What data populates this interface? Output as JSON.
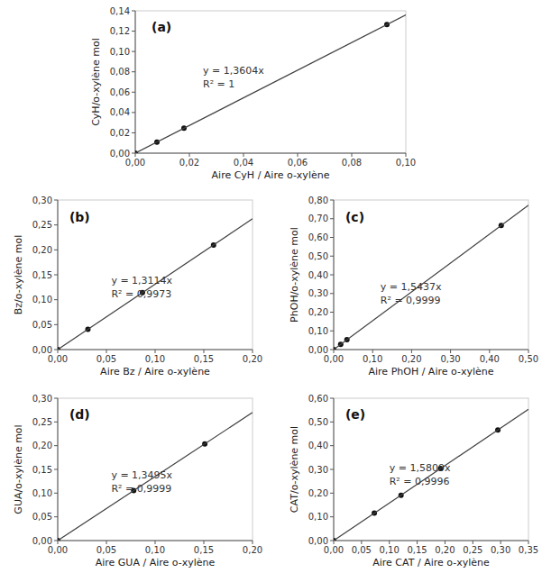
{
  "chart_data": [
    {
      "type": "scatter",
      "title": "(a)",
      "x_label": "Aire CyH / Aire o-xylène",
      "y_label": "CyH/o-xylène mol",
      "grid": false,
      "series": [
        {
          "type": "scatter",
          "color": "#111111",
          "x": [
            0.0,
            0.008,
            0.018,
            0.093
          ],
          "values": [
            0.0,
            0.0108832,
            0.0244872,
            0.1265172
          ]
        },
        {
          "type": "line",
          "color": "#404040",
          "x": [
            0.0,
            0.1
          ],
          "values": [
            0.0,
            0.13604
          ]
        }
      ],
      "annotations": [
        {
          "text": "y = 1,3604x\nR² = 1",
          "x": 0.025,
          "y": 0.075
        }
      ],
      "xlim": [
        0.0,
        0.1
      ],
      "ylim": [
        0.0,
        0.14
      ],
      "xticks": [
        {
          "value": 0.0,
          "label": "0,00"
        },
        {
          "value": 0.02,
          "label": "0,02"
        },
        {
          "value": 0.04,
          "label": "0,04"
        },
        {
          "value": 0.06,
          "label": "0,06"
        },
        {
          "value": 0.08,
          "label": "0,08"
        },
        {
          "value": 0.1,
          "label": "0,10"
        }
      ],
      "yticks": [
        {
          "value": 0.0,
          "label": "0,00"
        },
        {
          "value": 0.02,
          "label": "0,02"
        },
        {
          "value": 0.04,
          "label": "0,04"
        },
        {
          "value": 0.06,
          "label": "0,06"
        },
        {
          "value": 0.08,
          "label": "0,08"
        },
        {
          "value": 0.1,
          "label": "0,10"
        },
        {
          "value": 0.12,
          "label": "0,12"
        },
        {
          "value": 0.14,
          "label": "0,14"
        }
      ]
    },
    {
      "type": "scatter",
      "title": "(b)",
      "x_label": "Aire Bz / Aire o-xylène",
      "y_label": "Bz/o-xylène mol",
      "grid": false,
      "series": [
        {
          "type": "scatter",
          "color": "#111111",
          "x": [
            0.0,
            0.031,
            0.087,
            0.16
          ],
          "values": [
            0.0,
            0.0406534,
            0.1140918,
            0.209824
          ]
        },
        {
          "type": "line",
          "color": "#404040",
          "x": [
            0.0,
            0.2
          ],
          "values": [
            0.0,
            0.26228
          ]
        }
      ],
      "annotations": [
        {
          "text": "y = 1,3114x\nR² = 0,9973",
          "x": 0.055,
          "y": 0.125
        }
      ],
      "xlim": [
        0.0,
        0.2
      ],
      "ylim": [
        0.0,
        0.3
      ],
      "xticks": [
        {
          "value": 0.0,
          "label": "0,00"
        },
        {
          "value": 0.05,
          "label": "0,05"
        },
        {
          "value": 0.1,
          "label": "0,10"
        },
        {
          "value": 0.15,
          "label": "0,15"
        },
        {
          "value": 0.2,
          "label": "0,20"
        }
      ],
      "yticks": [
        {
          "value": 0.0,
          "label": "0,00"
        },
        {
          "value": 0.05,
          "label": "0,05"
        },
        {
          "value": 0.1,
          "label": "0,10"
        },
        {
          "value": 0.15,
          "label": "0,15"
        },
        {
          "value": 0.2,
          "label": "0,20"
        },
        {
          "value": 0.25,
          "label": "0,25"
        },
        {
          "value": 0.3,
          "label": "0,30"
        }
      ]
    },
    {
      "type": "scatter",
      "title": "(c)",
      "x_label": "Aire PhOH / Aire o-xylène",
      "y_label": "PhOH/o-xylène mol",
      "grid": false,
      "series": [
        {
          "type": "scatter",
          "color": "#111111",
          "x": [
            0.0,
            0.018,
            0.034,
            0.43
          ],
          "values": [
            0.0,
            0.0277866,
            0.0524858,
            0.663791
          ]
        },
        {
          "type": "line",
          "color": "#404040",
          "x": [
            0.0,
            0.5
          ],
          "values": [
            0.0,
            0.77185
          ]
        }
      ],
      "annotations": [
        {
          "text": "y = 1,5437x\nR² = 0,9999",
          "x": 0.12,
          "y": 0.3
        }
      ],
      "xlim": [
        0.0,
        0.5
      ],
      "ylim": [
        0.0,
        0.8
      ],
      "xticks": [
        {
          "value": 0.0,
          "label": "0,00"
        },
        {
          "value": 0.1,
          "label": "0,10"
        },
        {
          "value": 0.2,
          "label": "0,20"
        },
        {
          "value": 0.3,
          "label": "0,30"
        },
        {
          "value": 0.4,
          "label": "0,40"
        },
        {
          "value": 0.5,
          "label": "0,50"
        }
      ],
      "yticks": [
        {
          "value": 0.0,
          "label": "0,00"
        },
        {
          "value": 0.1,
          "label": "0,10"
        },
        {
          "value": 0.2,
          "label": "0,20"
        },
        {
          "value": 0.3,
          "label": "0,30"
        },
        {
          "value": 0.4,
          "label": "0,40"
        },
        {
          "value": 0.5,
          "label": "0,50"
        },
        {
          "value": 0.6,
          "label": "0,60"
        },
        {
          "value": 0.7,
          "label": "0,70"
        },
        {
          "value": 0.8,
          "label": "0,80"
        }
      ]
    },
    {
      "type": "scatter",
      "title": "(d)",
      "x_label": "Aire GUA / Aire o-xylène",
      "y_label": "GUA/o-xylène mol",
      "grid": false,
      "series": [
        {
          "type": "scatter",
          "color": "#111111",
          "x": [
            0.0,
            0.078,
            0.151
          ],
          "values": [
            0.0,
            0.105261,
            0.2037745
          ]
        },
        {
          "type": "line",
          "color": "#404040",
          "x": [
            0.0,
            0.2
          ],
          "values": [
            0.0,
            0.2699
          ]
        }
      ],
      "annotations": [
        {
          "text": "y = 1,3495x\nR² = 0,9999",
          "x": 0.055,
          "y": 0.125
        }
      ],
      "xlim": [
        0.0,
        0.2
      ],
      "ylim": [
        0.0,
        0.3
      ],
      "xticks": [
        {
          "value": 0.0,
          "label": "0,00"
        },
        {
          "value": 0.05,
          "label": "0,05"
        },
        {
          "value": 0.1,
          "label": "0,10"
        },
        {
          "value": 0.15,
          "label": "0,15"
        },
        {
          "value": 0.2,
          "label": "0,20"
        }
      ],
      "yticks": [
        {
          "value": 0.0,
          "label": "0,00"
        },
        {
          "value": 0.05,
          "label": "0,05"
        },
        {
          "value": 0.1,
          "label": "0,10"
        },
        {
          "value": 0.15,
          "label": "0,15"
        },
        {
          "value": 0.2,
          "label": "0,20"
        },
        {
          "value": 0.25,
          "label": "0,25"
        },
        {
          "value": 0.3,
          "label": "0,30"
        }
      ]
    },
    {
      "type": "scatter",
      "title": "(e)",
      "x_label": "Aire CAT / Aire o-xylène",
      "y_label": "CAT/o-xylène mol",
      "grid": false,
      "series": [
        {
          "type": "scatter",
          "color": "#111111",
          "x": [
            0.0,
            0.073,
            0.121,
            0.192,
            0.295
          ],
          "values": [
            0.0,
            0.1154057,
            0.1912889,
            0.3035328,
            0.4663655
          ]
        },
        {
          "type": "line",
          "color": "#404040",
          "x": [
            0.0,
            0.35
          ],
          "values": [
            0.0,
            0.553315
          ]
        }
      ],
      "annotations": [
        {
          "text": "y = 1,5809x\nR² = 0,9996",
          "x": 0.1,
          "y": 0.28
        }
      ],
      "xlim": [
        0.0,
        0.35
      ],
      "ylim": [
        0.0,
        0.6
      ],
      "xticks": [
        {
          "value": 0.0,
          "label": "0,00"
        },
        {
          "value": 0.05,
          "label": "0,05"
        },
        {
          "value": 0.1,
          "label": "0,10"
        },
        {
          "value": 0.15,
          "label": "0,15"
        },
        {
          "value": 0.2,
          "label": "0,20"
        },
        {
          "value": 0.25,
          "label": "0,25"
        },
        {
          "value": 0.3,
          "label": "0,30"
        },
        {
          "value": 0.35,
          "label": "0,35"
        }
      ],
      "yticks": [
        {
          "value": 0.0,
          "label": "0,00"
        },
        {
          "value": 0.1,
          "label": "0,10"
        },
        {
          "value": 0.2,
          "label": "0,20"
        },
        {
          "value": 0.3,
          "label": "0,30"
        },
        {
          "value": 0.4,
          "label": "0,40"
        },
        {
          "value": 0.5,
          "label": "0,50"
        },
        {
          "value": 0.6,
          "label": "0,60"
        }
      ]
    }
  ]
}
